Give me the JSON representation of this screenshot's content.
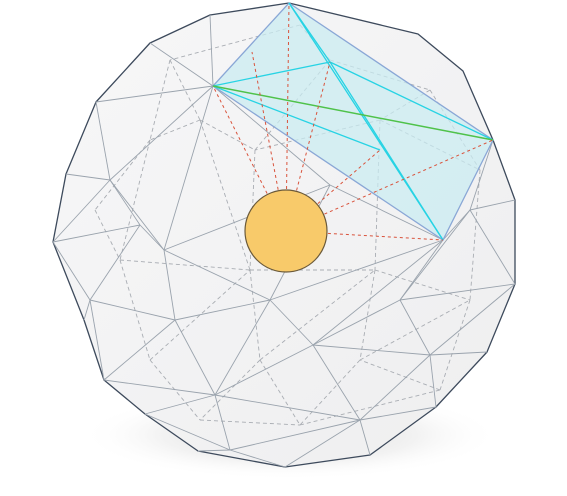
{
  "diagram": {
    "subject": "geodesic-polyhedron-with-inscribed-sphere-and-highlighted-cell",
    "colors": {
      "background": "#ffffff",
      "hull_fill": "#f3f3f4",
      "hull_stroke": "#3d4a5c",
      "front_edge": "#9aa3ad",
      "hidden_edge": "#a9adb3",
      "cell_fill": "#c9ecf1",
      "cell_outline": "#8aa7d6",
      "cell_diagonal": "#27d3e4",
      "cell_edge_highlight": "#4fc24a",
      "projection_line": "#d9533c",
      "sphere_fill": "#f8ca6a",
      "sphere_stroke": "#6b5a3a",
      "shadow": "#d9d9d9"
    }
  }
}
